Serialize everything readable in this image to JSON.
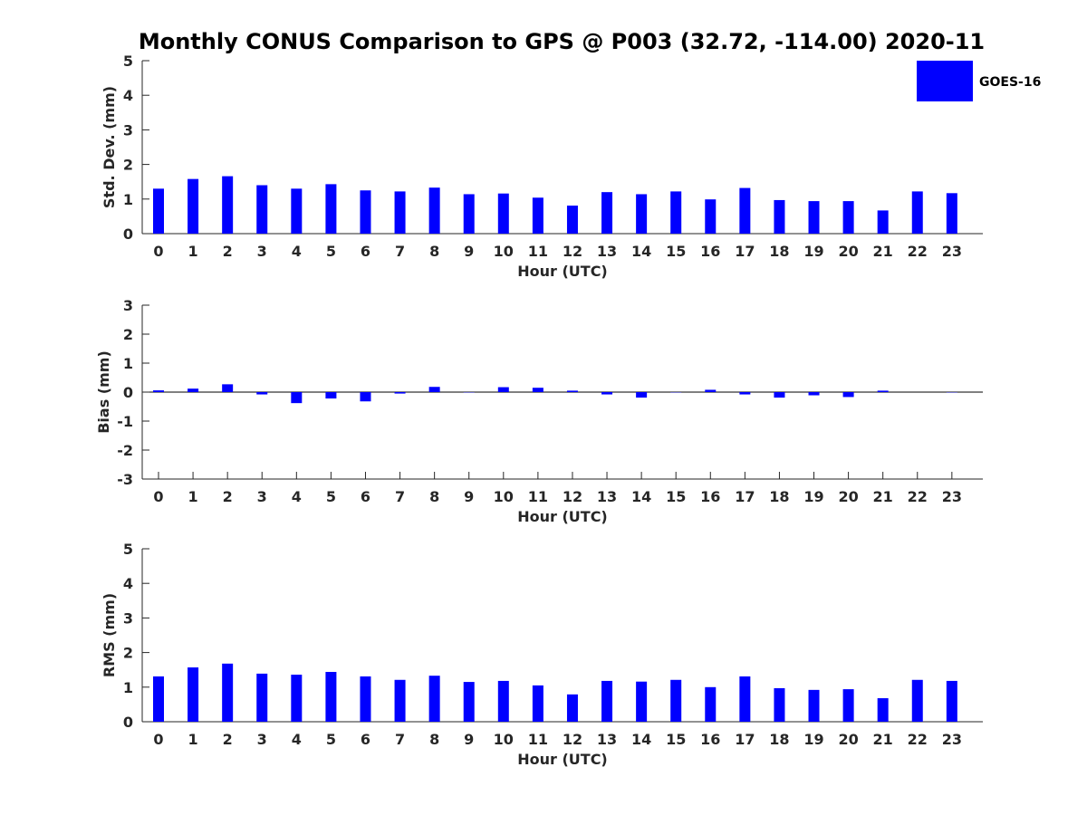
{
  "title": "Monthly CONUS Comparison to GPS @ P003 (32.72, -114.00) 2020-11",
  "legend": {
    "label": "GOES-16",
    "color": "#0000ff",
    "placement": "top-right"
  },
  "chart_data": [
    {
      "type": "bar",
      "xlabel": "Hour (UTC)",
      "ylabel": "Std. Dev. (mm)",
      "ylim": [
        0,
        5
      ],
      "yticks": [
        "0",
        "1",
        "2",
        "3",
        "4",
        "5"
      ],
      "categories": [
        "0",
        "1",
        "2",
        "3",
        "4",
        "5",
        "6",
        "7",
        "8",
        "9",
        "10",
        "11",
        "12",
        "13",
        "14",
        "15",
        "16",
        "17",
        "18",
        "19",
        "20",
        "21",
        "22",
        "23"
      ],
      "series": [
        {
          "name": "GOES-16",
          "color": "#0000ff",
          "values": [
            1.3,
            1.58,
            1.66,
            1.4,
            1.3,
            1.43,
            1.25,
            1.22,
            1.33,
            1.14,
            1.16,
            1.04,
            0.81,
            1.2,
            1.14,
            1.22,
            0.99,
            1.32,
            0.97,
            0.94,
            0.94,
            0.67,
            1.22,
            1.17
          ]
        }
      ]
    },
    {
      "type": "bar",
      "xlabel": "Hour (UTC)",
      "ylabel": "Bias (mm)",
      "ylim": [
        -3,
        3
      ],
      "yticks": [
        "-3",
        "-2",
        "-1",
        "0",
        "1",
        "2",
        "3"
      ],
      "zero_line": true,
      "categories": [
        "0",
        "1",
        "2",
        "3",
        "4",
        "5",
        "6",
        "7",
        "8",
        "9",
        "10",
        "11",
        "12",
        "13",
        "14",
        "15",
        "16",
        "17",
        "18",
        "19",
        "20",
        "21",
        "22",
        "23"
      ],
      "series": [
        {
          "name": "GOES-16",
          "color": "#0000ff",
          "values": [
            0.06,
            0.12,
            0.27,
            -0.08,
            -0.38,
            -0.22,
            -0.32,
            -0.05,
            0.18,
            -0.01,
            0.17,
            0.15,
            0.05,
            -0.08,
            -0.19,
            -0.01,
            0.08,
            -0.08,
            -0.19,
            -0.11,
            -0.17,
            0.05,
            0.0,
            -0.01
          ]
        }
      ]
    },
    {
      "type": "bar",
      "xlabel": "Hour (UTC)",
      "ylabel": "RMS (mm)",
      "ylim": [
        0,
        5
      ],
      "yticks": [
        "0",
        "1",
        "2",
        "3",
        "4",
        "5"
      ],
      "categories": [
        "0",
        "1",
        "2",
        "3",
        "4",
        "5",
        "6",
        "7",
        "8",
        "9",
        "10",
        "11",
        "12",
        "13",
        "14",
        "15",
        "16",
        "17",
        "18",
        "19",
        "20",
        "21",
        "22",
        "23"
      ],
      "series": [
        {
          "name": "GOES-16",
          "color": "#0000ff",
          "values": [
            1.31,
            1.57,
            1.68,
            1.39,
            1.36,
            1.44,
            1.31,
            1.21,
            1.33,
            1.15,
            1.18,
            1.05,
            0.79,
            1.18,
            1.16,
            1.21,
            1.0,
            1.31,
            0.97,
            0.92,
            0.94,
            0.68,
            1.21,
            1.18
          ]
        }
      ]
    }
  ]
}
